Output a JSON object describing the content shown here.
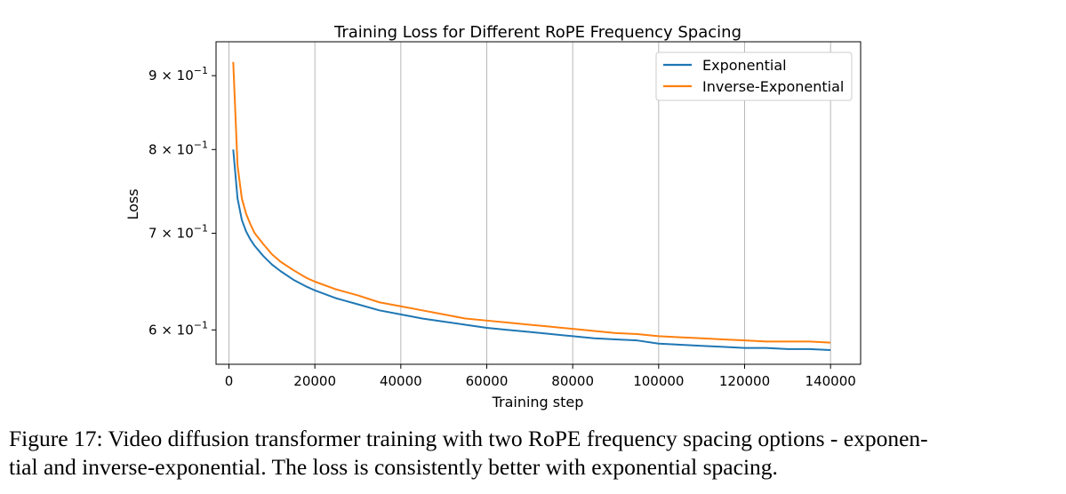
{
  "chart_data": {
    "type": "line",
    "title": "Training Loss for Different RoPE Frequency Spacing",
    "xlabel": "Training step",
    "ylabel": "Loss",
    "xlim": [
      -3000,
      147000
    ],
    "ylim": [
      0.568,
      0.95
    ],
    "yscale": "log",
    "grid": "vertical",
    "legend_position": "top-right",
    "x_ticks": [
      0,
      20000,
      40000,
      60000,
      80000,
      100000,
      120000,
      140000
    ],
    "x_tick_labels": [
      "0",
      "20000",
      "40000",
      "60000",
      "80000",
      "100000",
      "120000",
      "140000"
    ],
    "y_ticks": [
      0.6,
      0.7,
      0.8,
      0.9
    ],
    "y_tick_labels": [
      {
        "mant": "6",
        "exp": "−1"
      },
      {
        "mant": "7",
        "exp": "−1"
      },
      {
        "mant": "8",
        "exp": "−1"
      },
      {
        "mant": "9",
        "exp": "−1"
      }
    ],
    "series": [
      {
        "name": "Exponential",
        "color": "#1f77b4",
        "x": [
          1000,
          2000,
          3000,
          4000,
          5000,
          6000,
          8000,
          10000,
          12000,
          15000,
          18000,
          20000,
          25000,
          30000,
          35000,
          40000,
          45000,
          50000,
          55000,
          60000,
          65000,
          70000,
          75000,
          80000,
          85000,
          90000,
          95000,
          100000,
          105000,
          110000,
          115000,
          120000,
          125000,
          130000,
          135000,
          140000
        ],
        "values": [
          0.8,
          0.74,
          0.715,
          0.702,
          0.693,
          0.686,
          0.675,
          0.666,
          0.659,
          0.65,
          0.643,
          0.639,
          0.631,
          0.625,
          0.619,
          0.615,
          0.611,
          0.608,
          0.605,
          0.602,
          0.6,
          0.598,
          0.596,
          0.594,
          0.592,
          0.591,
          0.59,
          0.587,
          0.586,
          0.585,
          0.584,
          0.583,
          0.583,
          0.582,
          0.582,
          0.581
        ]
      },
      {
        "name": "Inverse-Exponential",
        "color": "#ff7f0e",
        "x": [
          1000,
          2000,
          3000,
          4000,
          5000,
          6000,
          8000,
          10000,
          12000,
          15000,
          18000,
          20000,
          25000,
          30000,
          35000,
          40000,
          45000,
          50000,
          55000,
          60000,
          65000,
          70000,
          75000,
          80000,
          85000,
          90000,
          95000,
          100000,
          105000,
          110000,
          115000,
          120000,
          125000,
          130000,
          135000,
          140000
        ],
        "values": [
          0.92,
          0.78,
          0.74,
          0.722,
          0.71,
          0.7,
          0.688,
          0.677,
          0.669,
          0.66,
          0.652,
          0.648,
          0.64,
          0.634,
          0.627,
          0.623,
          0.619,
          0.615,
          0.611,
          0.609,
          0.607,
          0.605,
          0.603,
          0.601,
          0.599,
          0.597,
          0.596,
          0.594,
          0.593,
          0.592,
          0.591,
          0.59,
          0.589,
          0.589,
          0.589,
          0.588
        ]
      }
    ]
  },
  "caption": {
    "line1": "Figure 17: Video diffusion transformer training with two RoPE frequency spacing options - exponen-",
    "line2": "tial and inverse-exponential. The loss is consistently better with exponential spacing."
  }
}
